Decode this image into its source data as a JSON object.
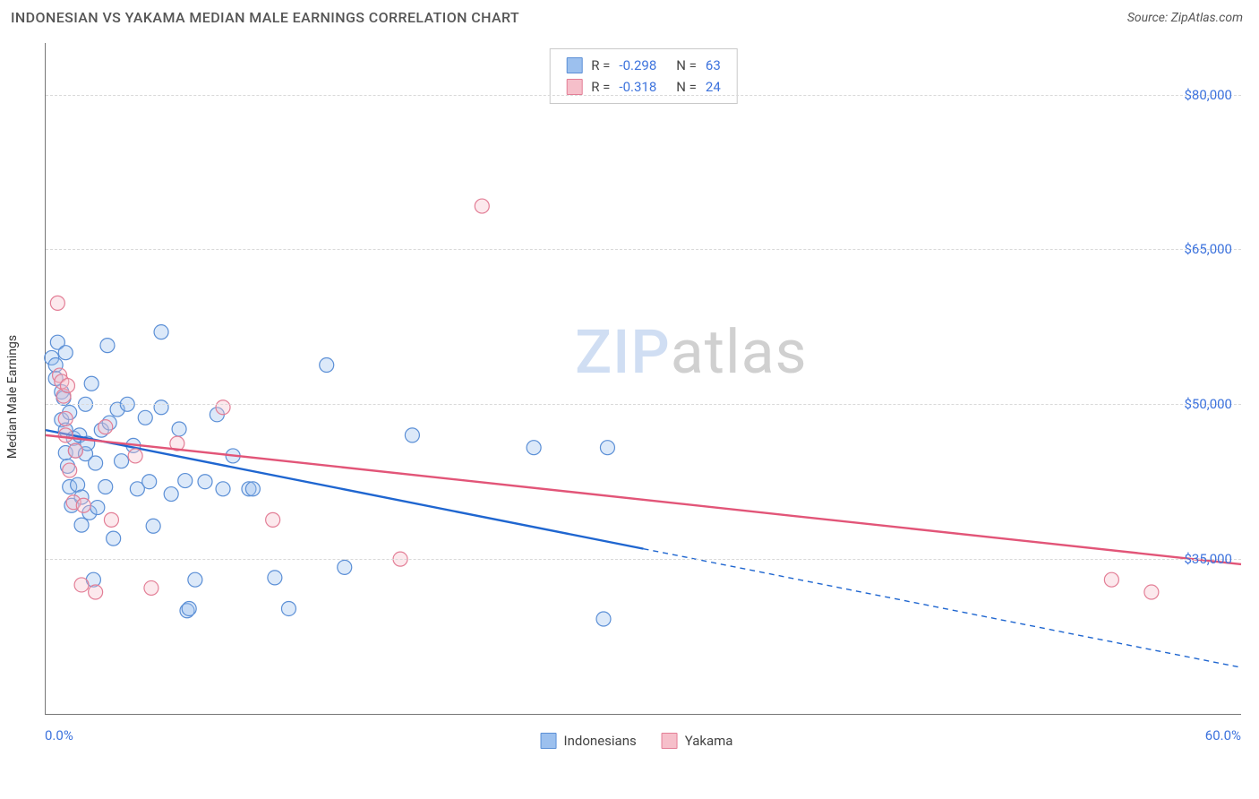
{
  "header": {
    "title": "INDONESIAN VS YAKAMA MEDIAN MALE EARNINGS CORRELATION CHART",
    "source_prefix": "Source: ",
    "source_name": "ZipAtlas.com"
  },
  "watermark": {
    "part1": "ZIP",
    "part2": "atlas"
  },
  "chart": {
    "type": "scatter",
    "y_axis_label": "Median Male Earnings",
    "x_range": [
      0,
      60
    ],
    "y_range": [
      20000,
      85000
    ],
    "x_tick_labels": {
      "min": "0.0%",
      "max": "60.0%"
    },
    "y_ticks": [
      {
        "value": 80000,
        "label": "$80,000"
      },
      {
        "value": 65000,
        "label": "$65,000"
      },
      {
        "value": 50000,
        "label": "$50,000"
      },
      {
        "value": 35000,
        "label": "$35,000"
      }
    ],
    "grid_color": "#d9d9d9",
    "axis_color": "#777777",
    "background_color": "#ffffff",
    "marker_radius": 8,
    "marker_fill_opacity": 0.35,
    "marker_stroke_width": 1.2,
    "trend_line_width": 2.4,
    "trend_dash_pattern": "6,5",
    "series": [
      {
        "key": "indonesians",
        "label": "Indonesians",
        "color_fill": "#9cc0ee",
        "color_stroke": "#5b8fd6",
        "trend_color": "#1f66d0",
        "r_label": "R =",
        "r_value": "-0.298",
        "n_label": "N =",
        "n_value": "63",
        "trend": {
          "x1": 0,
          "y1": 47500,
          "x2": 30,
          "y2": 36000,
          "x3": 60,
          "y3": 24500
        },
        "points": [
          [
            0.3,
            54500
          ],
          [
            0.5,
            53800
          ],
          [
            0.5,
            52500
          ],
          [
            0.6,
            56000
          ],
          [
            0.8,
            51200
          ],
          [
            0.8,
            48500
          ],
          [
            1.0,
            55000
          ],
          [
            1.0,
            47500
          ],
          [
            1.0,
            45300
          ],
          [
            1.1,
            44000
          ],
          [
            1.2,
            49200
          ],
          [
            1.2,
            42000
          ],
          [
            1.4,
            46700
          ],
          [
            1.3,
            40200
          ],
          [
            0.9,
            50600
          ],
          [
            1.5,
            45500
          ],
          [
            1.6,
            42200
          ],
          [
            1.7,
            47000
          ],
          [
            1.8,
            41000
          ],
          [
            1.8,
            38300
          ],
          [
            2.0,
            45200
          ],
          [
            2.0,
            50000
          ],
          [
            2.1,
            46200
          ],
          [
            2.3,
            52000
          ],
          [
            2.2,
            39500
          ],
          [
            2.4,
            33000
          ],
          [
            2.5,
            44300
          ],
          [
            2.6,
            40000
          ],
          [
            2.8,
            47500
          ],
          [
            3.1,
            55700
          ],
          [
            3.0,
            42000
          ],
          [
            3.2,
            48200
          ],
          [
            3.4,
            37000
          ],
          [
            3.6,
            49500
          ],
          [
            3.8,
            44500
          ],
          [
            4.1,
            50000
          ],
          [
            4.4,
            46000
          ],
          [
            4.6,
            41800
          ],
          [
            5.0,
            48700
          ],
          [
            5.2,
            42500
          ],
          [
            5.4,
            38200
          ],
          [
            5.8,
            49700
          ],
          [
            5.8,
            57000
          ],
          [
            6.3,
            41300
          ],
          [
            6.7,
            47600
          ],
          [
            7.0,
            42600
          ],
          [
            7.1,
            30000
          ],
          [
            7.2,
            30200
          ],
          [
            7.5,
            33000
          ],
          [
            8.0,
            42500
          ],
          [
            8.6,
            49000
          ],
          [
            8.9,
            41800
          ],
          [
            9.4,
            45000
          ],
          [
            10.2,
            41800
          ],
          [
            10.4,
            41800
          ],
          [
            11.5,
            33200
          ],
          [
            12.2,
            30200
          ],
          [
            14.1,
            53800
          ],
          [
            15.0,
            34200
          ],
          [
            18.4,
            47000
          ],
          [
            24.5,
            45800
          ],
          [
            28.2,
            45800
          ],
          [
            28.0,
            29200
          ]
        ]
      },
      {
        "key": "yakama",
        "label": "Yakama",
        "color_fill": "#f6bfca",
        "color_stroke": "#e37e96",
        "trend_color": "#e25578",
        "r_label": "R =",
        "r_value": "-0.318",
        "n_label": "N =",
        "n_value": "24",
        "trend": {
          "x1": 0,
          "y1": 47000,
          "x2": 60,
          "y2": 34500
        },
        "points": [
          [
            0.6,
            59800
          ],
          [
            0.7,
            52800
          ],
          [
            0.8,
            52200
          ],
          [
            0.9,
            50800
          ],
          [
            1.0,
            48600
          ],
          [
            1.0,
            47000
          ],
          [
            1.1,
            51800
          ],
          [
            1.5,
            45500
          ],
          [
            1.2,
            43600
          ],
          [
            1.4,
            40500
          ],
          [
            1.9,
            40200
          ],
          [
            1.8,
            32500
          ],
          [
            2.5,
            31800
          ],
          [
            3.0,
            47800
          ],
          [
            3.3,
            38800
          ],
          [
            4.5,
            45000
          ],
          [
            5.3,
            32200
          ],
          [
            6.6,
            46200
          ],
          [
            8.9,
            49700
          ],
          [
            11.4,
            38800
          ],
          [
            17.8,
            35000
          ],
          [
            21.9,
            69200
          ],
          [
            53.5,
            33000
          ],
          [
            55.5,
            31800
          ]
        ]
      }
    ]
  }
}
